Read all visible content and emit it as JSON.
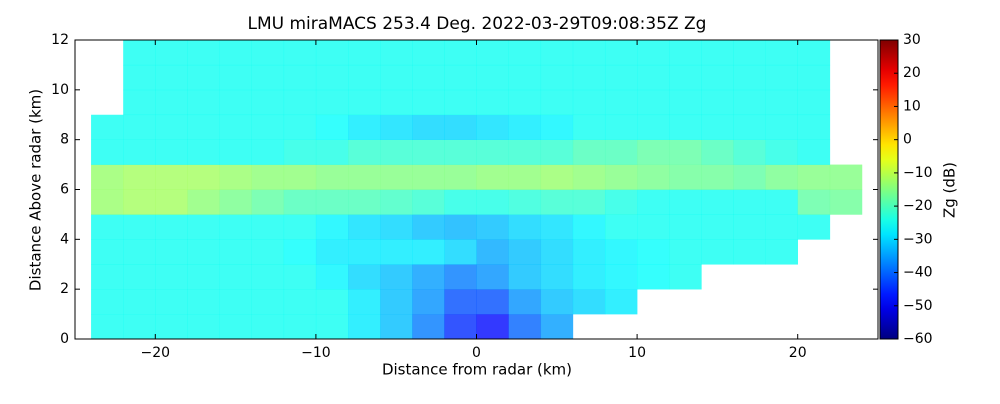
{
  "chart_data": {
    "type": "heatmap",
    "title": "LMU miraMACS 253.4 Deg. 2022-03-29T09:08:35Z  Zg",
    "x_label": "Distance from radar (km)",
    "y_label": "Distance Above radar  (km)",
    "colorbar_label": "Zg (dB)",
    "colormap": "jet",
    "x": [
      -23,
      -21,
      -19,
      -17,
      -15,
      -13,
      -11,
      -9,
      -7,
      -5,
      -3,
      -1,
      1,
      3,
      5,
      7,
      9,
      11,
      13,
      15,
      17,
      19,
      21,
      23
    ],
    "y": [
      0.5,
      1.5,
      2.5,
      3.5,
      4.5,
      5.5,
      6.5,
      7.5,
      8.5,
      9.5,
      10.5,
      11.5
    ],
    "z": [
      [
        -25,
        -25,
        -25,
        -25,
        -25,
        -25,
        -25,
        -25,
        -28,
        -32,
        -38,
        -45,
        -48,
        -40,
        -35,
        null,
        null,
        null,
        null,
        null,
        null,
        null,
        null,
        null
      ],
      [
        -25,
        -25,
        -25,
        -25,
        -25,
        -25,
        -25,
        -25,
        -28,
        -32,
        -36,
        -42,
        -42,
        -36,
        -32,
        -30,
        -28,
        null,
        null,
        null,
        null,
        null,
        null,
        null
      ],
      [
        -25,
        -25,
        -25,
        -25,
        -25,
        -25,
        -25,
        -27,
        -30,
        -32,
        -35,
        -38,
        -36,
        -32,
        -30,
        -28,
        -27,
        -26,
        -25,
        null,
        null,
        null,
        null,
        null
      ],
      [
        -25,
        -25,
        -25,
        -25,
        -25,
        -25,
        -26,
        -28,
        -28,
        -28,
        -28,
        -30,
        -34,
        -32,
        -30,
        -28,
        -27,
        -26,
        -25,
        -25,
        -25,
        -25,
        null,
        null
      ],
      [
        -25,
        -25,
        -25,
        -25,
        -25,
        -25,
        -25,
        -27,
        -29,
        -30,
        -32,
        -33,
        -32,
        -30,
        -29,
        -27,
        -25,
        -25,
        -25,
        -25,
        -25,
        -25,
        -25,
        null
      ],
      [
        -13,
        -12,
        -12,
        -14,
        -16,
        -18,
        -20,
        -20,
        -20,
        -21,
        -22,
        -24,
        -24,
        -23,
        -22,
        -22,
        -24,
        -25,
        -25,
        -25,
        -25,
        -25,
        -18,
        -17
      ],
      [
        -13,
        -12,
        -12,
        -12,
        -13,
        -14,
        -14,
        -15,
        -15,
        -15,
        -15,
        -15,
        -14,
        -14,
        -13,
        -14,
        -15,
        -16,
        -17,
        -17,
        -18,
        -16,
        -15,
        -15
      ],
      [
        -25,
        -25,
        -25,
        -25,
        -25,
        -25,
        -24,
        -24,
        -22,
        -22,
        -22,
        -22,
        -22,
        -22,
        -22,
        -20,
        -20,
        -18,
        -18,
        -20,
        -22,
        -24,
        -25,
        null
      ],
      [
        -25,
        -25,
        -25,
        -25,
        -25,
        -25,
        -25,
        -26,
        -28,
        -29,
        -30,
        -30,
        -29,
        -28,
        -27,
        -25,
        -25,
        -25,
        -25,
        -25,
        -25,
        -25,
        -25,
        null
      ],
      [
        null,
        -25,
        -25,
        -25,
        -25,
        -25,
        -25,
        -25,
        -25,
        -25,
        -25,
        -25,
        -25,
        -25,
        -25,
        -25,
        -25,
        -25,
        -25,
        -25,
        -25,
        -25,
        -25,
        null
      ],
      [
        null,
        -25,
        -25,
        -25,
        -25,
        -25,
        -25,
        -25,
        -25,
        -25,
        -25,
        -25,
        -25,
        -25,
        -25,
        -25,
        -25,
        -25,
        -25,
        -25,
        -25,
        -25,
        -25,
        null
      ],
      [
        null,
        -25,
        -25,
        -25,
        -25,
        -25,
        -25,
        -25,
        -25,
        -25,
        -25,
        -25,
        -25,
        -25,
        -25,
        -25,
        -25,
        -25,
        -25,
        -25,
        -25,
        -25,
        -25,
        null
      ]
    ],
    "xlim": [
      -25,
      25
    ],
    "xticks": [
      {
        "value": -20,
        "label": "−20"
      },
      {
        "value": -10,
        "label": "−10"
      },
      0,
      10,
      20
    ],
    "ylim": [
      0,
      12
    ],
    "yticks": [
      0,
      2,
      4,
      6,
      8,
      10,
      12
    ],
    "zlim": [
      -60,
      30
    ],
    "zticks": [
      {
        "value": -60,
        "label": "−60"
      },
      {
        "value": -50,
        "label": "−50"
      },
      {
        "value": -40,
        "label": "−40"
      },
      {
        "value": -30,
        "label": "−30"
      },
      {
        "value": -20,
        "label": "−20"
      },
      {
        "value": -10,
        "label": "−10"
      },
      0,
      10,
      20,
      30
    ]
  }
}
